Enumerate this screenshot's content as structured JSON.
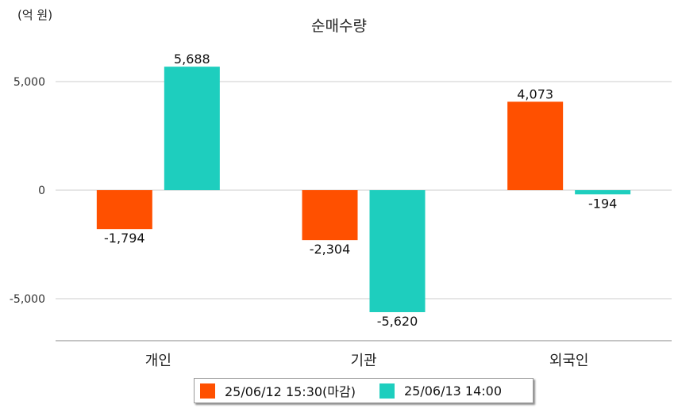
{
  "unit_label": "(억 원)",
  "chart_data": {
    "type": "bar",
    "title": "순매수량",
    "ylabel": "",
    "xlabel": "",
    "categories": [
      "개인",
      "기관",
      "외국인"
    ],
    "series": [
      {
        "name": "25/06/12 15:30(마감)",
        "color": "#ff5000",
        "values": [
          -1794,
          -2304,
          4073
        ]
      },
      {
        "name": "25/06/13 14:00",
        "color": "#1ecebe",
        "values": [
          5688,
          -5620,
          -194
        ]
      }
    ],
    "value_labels": [
      [
        "-1,794",
        "-2,304",
        "4,073"
      ],
      [
        "5,688",
        "-5,620",
        "-194"
      ]
    ],
    "yticks": [
      {
        "value": 5000,
        "label": "5,000"
      },
      {
        "value": 0,
        "label": "0"
      },
      {
        "value": -5000,
        "label": "-5,000"
      }
    ],
    "ylim": [
      -7000,
      6000
    ],
    "grid": true,
    "legend_position": "bottom"
  }
}
